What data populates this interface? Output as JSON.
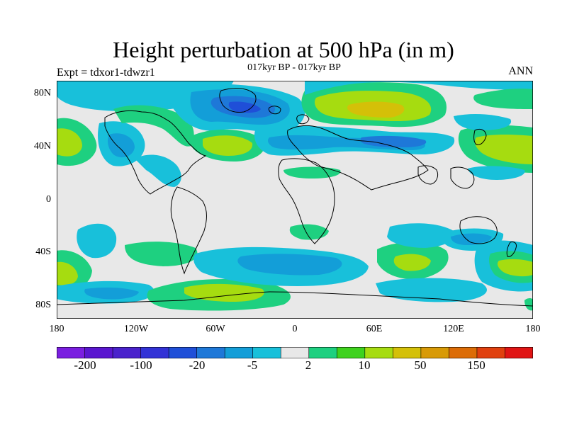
{
  "title": "Height perturbation at 500 hPa (in m)",
  "subtitle": "017kyr BP - 017kyr BP",
  "left_label": "Expt = tdxor1-tdwzr1",
  "right_label": "ANN",
  "map": {
    "lat_labels": [
      "80N",
      "40N",
      "0",
      "40S",
      "80S"
    ],
    "lon_labels": [
      "180",
      "120W",
      "60W",
      "0",
      "60E",
      "120E",
      "180"
    ]
  },
  "colorbar": {
    "colors": [
      "#7a1ee0",
      "#5a16d0",
      "#4a22cc",
      "#3232d6",
      "#1f4fd8",
      "#1e78d8",
      "#139ed8",
      "#18c0da",
      "#e8e8e8",
      "#1ed080",
      "#3ed21e",
      "#a6dc10",
      "#d4c008",
      "#d89a06",
      "#dc6c06",
      "#e0400e",
      "#e01414"
    ],
    "labels": [
      "-200",
      "-100",
      "-20",
      "-5",
      "2",
      "10",
      "50",
      "150"
    ]
  }
}
